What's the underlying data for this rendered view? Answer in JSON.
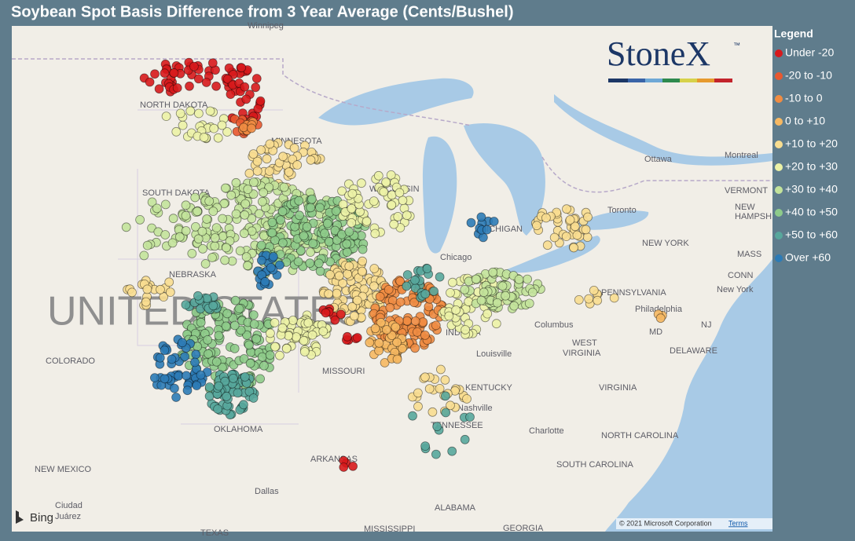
{
  "title": "Soybean Spot Basis Difference from 3 Year Average (Cents/Bushel)",
  "legend": {
    "title": "Legend",
    "items": [
      {
        "label": "Under -20",
        "color": "#d7191c"
      },
      {
        "label": "-20 to -10",
        "color": "#e8582f"
      },
      {
        "label": "-10 to 0",
        "color": "#f08c42"
      },
      {
        "label": "0 to +10",
        "color": "#f6b862"
      },
      {
        "label": "+10 to +20",
        "color": "#f8dd90"
      },
      {
        "label": "+20 to +30",
        "color": "#ecf2a6"
      },
      {
        "label": "+30 to +40",
        "color": "#c3e39b"
      },
      {
        "label": "+40 to +50",
        "color": "#8ecb8a"
      },
      {
        "label": "+50 to +60",
        "color": "#58a79c"
      },
      {
        "label": "Over +60",
        "color": "#2c7bb6"
      }
    ]
  },
  "logo": {
    "name": "StoneX",
    "mark": "™"
  },
  "map_labels": [
    "NORTH DAKOTA",
    "MINNESOTA",
    "SOUTH DAKOTA",
    "WISCONSIN",
    "MICHIGAN",
    "Chicago",
    "NEBRASKA",
    "UNITED STATES",
    "COLORADO",
    "MISSOURI",
    "INDIANA",
    "Louisville",
    "KENTUCKY",
    "Nashville",
    "TENNESSEE",
    "OKLAHOMA",
    "ARKANSAS",
    "NEW MEXICO",
    "Dallas",
    "Ciudad",
    "Juárez",
    "TEXAS",
    "MISSISSIPPI",
    "ALABAMA",
    "GEORGIA",
    "SOUTH CAROLINA",
    "NORTH CAROLINA",
    "Charlotte",
    "VIRGINIA",
    "WEST",
    "VIRGINIA",
    "Columbus",
    "PENNSYLVANIA",
    "Philadelphia",
    "NJ",
    "MD",
    "DELAWARE",
    "New York",
    "NEW YORK",
    "Toronto",
    "Ottawa",
    "Montreal",
    "VERMONT",
    "NEW",
    "HAMPSH",
    "MASS",
    "CONN",
    "Winnipeg"
  ],
  "attribution": {
    "bing": "Bing",
    "copyright": "© 2021 Microsoft Corporation",
    "terms": "Terms"
  }
}
